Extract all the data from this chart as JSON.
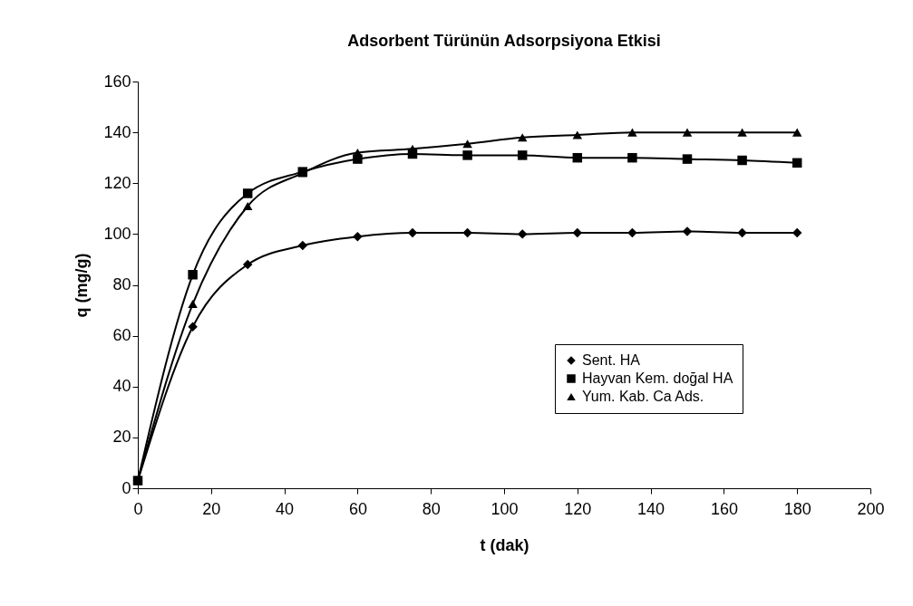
{
  "chart_data": {
    "type": "line",
    "title": "Adsorbent Türünün Adsorpsiyona Etkisi",
    "xlabel": "t (dak)",
    "ylabel": "q (mg/g)",
    "x": [
      0,
      15,
      30,
      45,
      60,
      75,
      90,
      105,
      120,
      135,
      150,
      165,
      180
    ],
    "series": [
      {
        "name": "Sent. HA",
        "color": "#000000",
        "marker": "diamond",
        "values": [
          3,
          63.5,
          88,
          95.5,
          99,
          100.5,
          100.5,
          100,
          100.5,
          100.5,
          101,
          100.5,
          100.5
        ]
      },
      {
        "name": "Hayvan Kem. doğal HA",
        "color": "#000000",
        "marker": "square",
        "values": [
          3,
          84,
          116,
          124.5,
          129.5,
          131.5,
          131,
          131,
          130,
          130,
          129.5,
          129,
          128
        ]
      },
      {
        "name": "Yum. Kab. Ca Ads.",
        "color": "#000000",
        "marker": "triangle",
        "values": [
          3,
          72.5,
          111,
          124,
          132,
          133.5,
          135.5,
          138,
          139,
          140,
          140,
          140,
          140
        ]
      }
    ],
    "xlim": [
      0,
      200
    ],
    "xticks": [
      0,
      20,
      40,
      60,
      80,
      100,
      120,
      140,
      160,
      180,
      200
    ],
    "ylim": [
      0,
      160
    ],
    "yticks": [
      0,
      20,
      40,
      60,
      80,
      100,
      120,
      140,
      160
    ],
    "grid": false,
    "legend": "bottom right",
    "line_style": "solid"
  }
}
